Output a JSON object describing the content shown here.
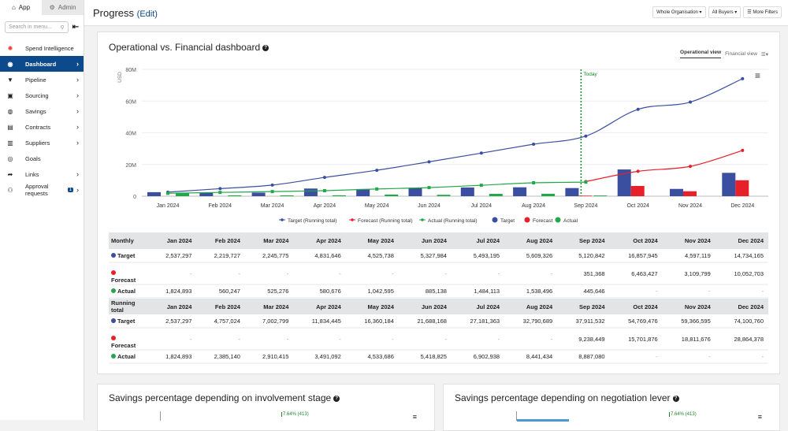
{
  "sidebar": {
    "tabs": [
      {
        "label": "App",
        "icon": "home-icon"
      },
      {
        "label": "Admin",
        "icon": "gear-icon"
      }
    ],
    "search_placeholder": "Search in menu...",
    "items": [
      {
        "label": "Spend Intelligence",
        "icon": "spend-icon"
      },
      {
        "label": "Dashboard",
        "icon": "dashboard-icon",
        "active": true
      },
      {
        "label": "Pipeline",
        "icon": "filter-icon"
      },
      {
        "label": "Sourcing",
        "icon": "sourcing-icon"
      },
      {
        "label": "Savings",
        "icon": "savings-icon"
      },
      {
        "label": "Contracts",
        "icon": "contracts-icon"
      },
      {
        "label": "Suppliers",
        "icon": "suppliers-icon"
      },
      {
        "label": "Goals",
        "icon": "goals-icon"
      },
      {
        "label": "Links",
        "icon": "share-icon"
      },
      {
        "label": "Approval requests",
        "icon": "approval-icon",
        "badge": "1"
      }
    ]
  },
  "header": {
    "title": "Progress",
    "edit": "(Edit)",
    "filters": [
      "Whole Organisation",
      "All Buyers",
      "More Filters"
    ]
  },
  "main": {
    "title": "Operational vs. Financial dashboard",
    "views": [
      "Operational view",
      "Financial view"
    ]
  },
  "colors": {
    "target": "#3a4fa0",
    "forecast": "#e8202a",
    "actual": "#22a84a",
    "today": "#1a8a2a",
    "active_nav": "#0c4a8c"
  },
  "chart_data": {
    "type": "bar+line",
    "ylabel": "USD",
    "ylim": [
      0,
      80000000
    ],
    "yticks": [
      "0",
      "20M",
      "40M",
      "60M",
      "80M"
    ],
    "categories": [
      "Jan 2024",
      "Feb 2024",
      "Mar 2024",
      "Apr 2024",
      "May 2024",
      "Jun 2024",
      "Jul 2024",
      "Aug 2024",
      "Sep 2024",
      "Oct 2024",
      "Nov 2024",
      "Dec 2024"
    ],
    "today_label": "Today",
    "today_month": "Sep 2024",
    "legend": [
      "Target (Running total)",
      "Forecast (Running total)",
      "Actual (Running total)",
      "Target",
      "Forecast",
      "Actual"
    ]
  },
  "table": {
    "months": [
      "Jan 2024",
      "Feb 2024",
      "Mar 2024",
      "Apr 2024",
      "May 2024",
      "Jun 2024",
      "Jul 2024",
      "Aug 2024",
      "Sep 2024",
      "Oct 2024",
      "Nov 2024",
      "Dec 2024"
    ],
    "monthly_label": "Monthly",
    "running_label": "Running total",
    "monthly": {
      "target": {
        "label": "Target",
        "values": [
          "2,537,297",
          "2,219,727",
          "2,245,775",
          "4,831,646",
          "4,525,738",
          "5,327,984",
          "5,493,195",
          "5,609,326",
          "5,120,842",
          "16,857,945",
          "4,597,119",
          "14,734,165"
        ]
      },
      "forecast": {
        "label": "Forecast",
        "values": [
          "-",
          "-",
          "-",
          "-",
          "-",
          "-",
          "-",
          "-",
          "351,368",
          "6,463,427",
          "3,109,799",
          "10,052,703"
        ]
      },
      "actual": {
        "label": "Actual",
        "values": [
          "1,824,893",
          "560,247",
          "525,276",
          "580,676",
          "1,042,595",
          "885,138",
          "1,484,113",
          "1,538,496",
          "445,646",
          "-",
          "-",
          "-"
        ]
      }
    },
    "running": {
      "target": {
        "label": "Target",
        "values": [
          "2,537,297",
          "4,757,024",
          "7,002,799",
          "11,834,445",
          "16,360,184",
          "21,688,168",
          "27,181,363",
          "32,790,689",
          "37,911,532",
          "54,769,476",
          "59,366,595",
          "74,100,760"
        ]
      },
      "forecast": {
        "label": "Forecast",
        "values": [
          "-",
          "-",
          "-",
          "-",
          "-",
          "-",
          "-",
          "-",
          "9,238,449",
          "15,701,876",
          "18,811,676",
          "28,864,378"
        ]
      },
      "actual": {
        "label": "Actual",
        "values": [
          "1,824,893",
          "2,385,140",
          "2,910,415",
          "3,491,092",
          "4,533,686",
          "5,418,825",
          "6,902,938",
          "8,441,434",
          "8,887,080",
          "-",
          "-",
          "-"
        ]
      }
    }
  },
  "bottom": [
    {
      "title": "Savings percentage depending on involvement stage",
      "annotation": "7.64% (413)"
    },
    {
      "title": "Savings percentage depending on negotiation lever",
      "annotation": "7.64% (413)"
    }
  ]
}
